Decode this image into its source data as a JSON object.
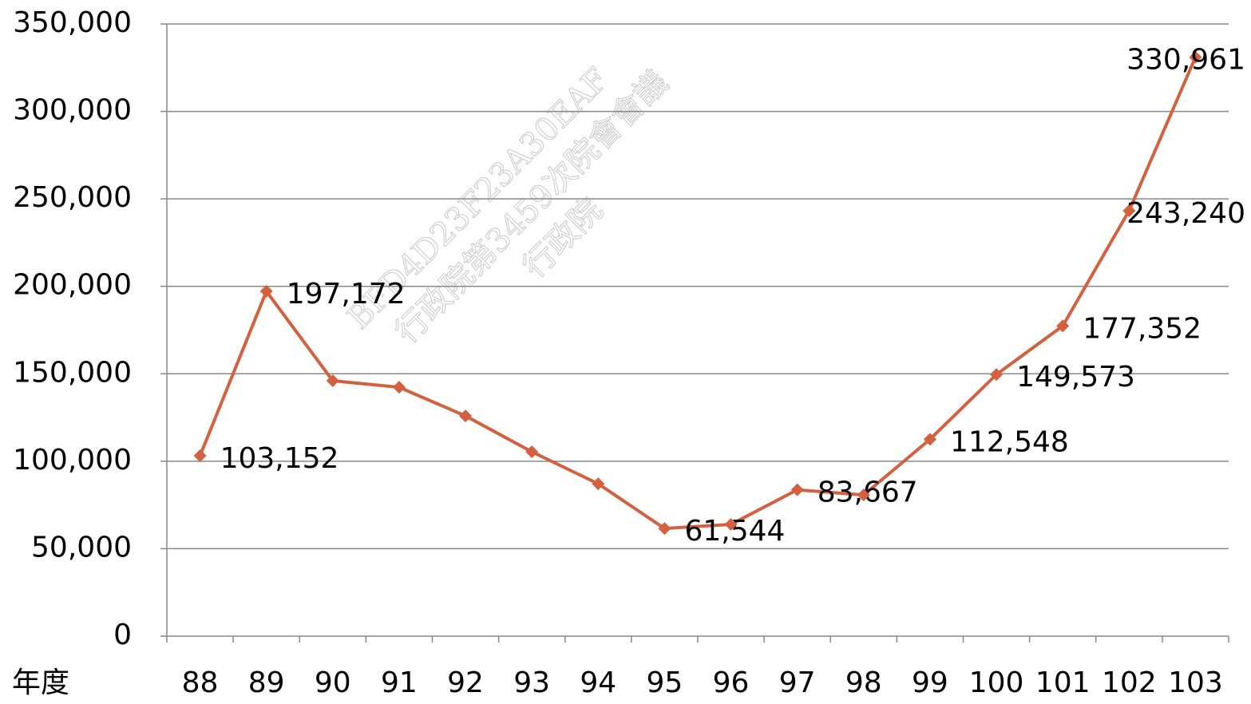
{
  "chart_data": {
    "type": "line",
    "x_label": "年度",
    "categories": [
      "88",
      "89",
      "90",
      "91",
      "92",
      "93",
      "94",
      "95",
      "96",
      "97",
      "98",
      "99",
      "100",
      "101",
      "102",
      "103"
    ],
    "series": [
      {
        "name": null,
        "color": "#d3603e",
        "values": [
          103152,
          197172,
          146000,
          142300,
          125900,
          105400,
          87100,
          61544,
          63900,
          83667,
          80700,
          112548,
          149573,
          177352,
          243240,
          330961
        ],
        "value_labels": [
          "103,152",
          "197,172",
          null,
          null,
          null,
          null,
          null,
          "61,544",
          null,
          "83,667",
          null,
          "112,548",
          "149,573",
          "177,352",
          "243,240",
          "330,961"
        ]
      }
    ],
    "ylim": [
      0,
      350000
    ],
    "yticks": [
      0,
      {
        "value": 50000,
        "label": "50,000"
      },
      {
        "value": 100000,
        "label": "100,000"
      },
      {
        "value": 150000,
        "label": "150,000"
      },
      {
        "value": 200000,
        "label": "200,000"
      },
      {
        "value": 250000,
        "label": "250,000"
      },
      {
        "value": 300000,
        "label": "300,000"
      },
      {
        "value": 350000,
        "label": "350,000"
      }
    ],
    "grid": true,
    "watermark": [
      "BFD4D23F23A30EAF",
      "行政院第3459次院會會議",
      "行政院"
    ]
  }
}
